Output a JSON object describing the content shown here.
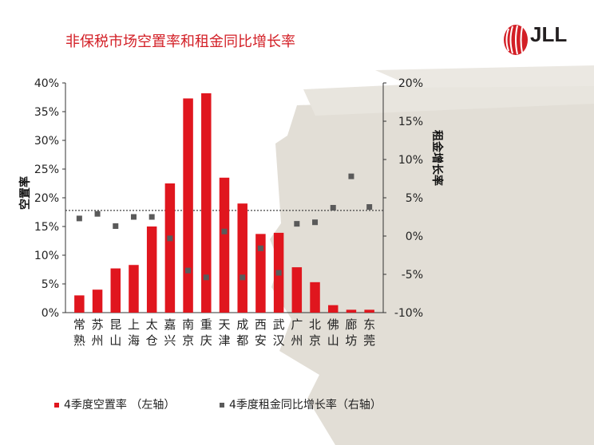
{
  "title": "非保税市场空置率和租金同比增长率",
  "logo": {
    "text": "JLL",
    "color": "#d31f26"
  },
  "colors": {
    "bar": "#e0161e",
    "marker": "#5a5a5a",
    "title": "#d31f26",
    "brush": "#dedbd2"
  },
  "legend": {
    "bars": "4季度空置率 （左轴）",
    "markers": "4季度租金同比增长率（右轴）"
  },
  "chart_data": {
    "type": "bar",
    "title": "非保税市场空置率和租金同比增长率",
    "categories": [
      "常熟",
      "苏州",
      "昆山",
      "上海",
      "太仓",
      "嘉兴",
      "南京",
      "重庆",
      "天津",
      "成都",
      "西安",
      "武汉",
      "广州",
      "北京",
      "佛山",
      "廊坊",
      "东莞"
    ],
    "category_labels": [
      [
        "常",
        "熟"
      ],
      [
        "苏",
        "州"
      ],
      [
        "昆",
        "山"
      ],
      [
        "上",
        "海"
      ],
      [
        "太",
        "仓"
      ],
      [
        "嘉",
        "兴"
      ],
      [
        "南",
        "京"
      ],
      [
        "重",
        "庆"
      ],
      [
        "天",
        "津"
      ],
      [
        "成",
        "都"
      ],
      [
        "西",
        "安"
      ],
      [
        "武",
        "汉"
      ],
      [
        "广",
        "州"
      ],
      [
        "北",
        "京"
      ],
      [
        "佛",
        "山"
      ],
      [
        "廊",
        "坊"
      ],
      [
        "东",
        "莞"
      ]
    ],
    "series": [
      {
        "name": "4季度空置率 （左轴）",
        "type": "bar",
        "axis": "left",
        "values": [
          3.0,
          4.0,
          7.7,
          8.3,
          15.0,
          22.5,
          37.3,
          38.2,
          23.5,
          19.0,
          13.7,
          13.9,
          7.9,
          5.3,
          1.3,
          0.5,
          0.5
        ]
      },
      {
        "name": "4季度租金同比增长率（右轴）",
        "type": "scatter",
        "axis": "right",
        "values": [
          2.3,
          2.9,
          1.3,
          2.5,
          2.5,
          -0.3,
          -4.5,
          -5.4,
          0.6,
          -5.4,
          -1.6,
          -4.8,
          1.6,
          1.8,
          3.7,
          7.8,
          3.8
        ]
      }
    ],
    "y_left": {
      "label": "空置率",
      "ticks": [
        "40%",
        "35%",
        "30%",
        "25%",
        "20%",
        "15%",
        "10%",
        "5%",
        "0%"
      ],
      "ylim": [
        0,
        40
      ]
    },
    "y_right": {
      "label": "租金增长率",
      "ticks": [
        "20%",
        "15%",
        "10%",
        "5%",
        "0%",
        "-5%",
        "-10%"
      ],
      "ylim": [
        -10,
        20
      ]
    },
    "reference_line": {
      "axis": "left",
      "value": 17.8,
      "style": "dotted"
    },
    "grid": false,
    "legend_position": "bottom"
  }
}
